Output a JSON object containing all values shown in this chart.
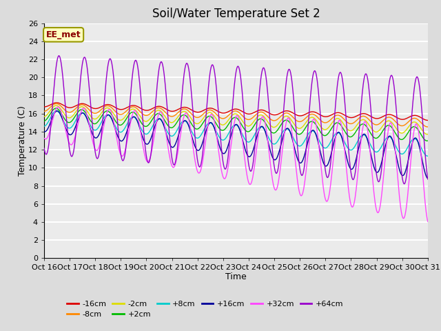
{
  "title": "Soil/Water Temperature Set 2",
  "xlabel": "Time",
  "ylabel": "Temperature (C)",
  "ylim": [
    0,
    26
  ],
  "yticks": [
    0,
    2,
    4,
    6,
    8,
    10,
    12,
    14,
    16,
    18,
    20,
    22,
    24,
    26
  ],
  "xtick_labels": [
    "Oct 16",
    "Oct 17",
    "Oct 18",
    "Oct 19",
    "Oct 20",
    "Oct 21",
    "Oct 22",
    "Oct 23",
    "Oct 24",
    "Oct 25",
    "Oct 26",
    "Oct 27",
    "Oct 28",
    "Oct 29",
    "Oct 30",
    "Oct 31"
  ],
  "annotation_text": "EE_met",
  "annotation_color": "#8B0000",
  "annotation_bg": "#FFFFC0",
  "annotation_border": "#999900",
  "series_colors": {
    "-16cm": "#DD0000",
    "-8cm": "#FF8800",
    "-2cm": "#DDDD00",
    "+2cm": "#00BB00",
    "+8cm": "#00CCCC",
    "+16cm": "#000099",
    "+32cm": "#FF44FF",
    "+64cm": "#9900CC"
  },
  "background_color": "#DCDCDC",
  "plot_bg": "#EBEBEB",
  "grid_color": "#FFFFFF",
  "title_fontsize": 12,
  "axis_fontsize": 9,
  "tick_fontsize": 8
}
